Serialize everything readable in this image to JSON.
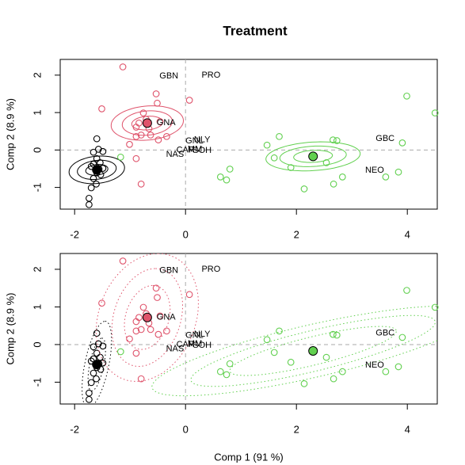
{
  "chart_data": [
    {
      "type": "scatter",
      "title": "Treatment",
      "ylabel": "Comp 2 (8.9 %)",
      "xlim": [
        -2.26,
        4.54
      ],
      "ylim": [
        -1.58,
        2.42
      ],
      "xticks": [
        -2,
        0,
        2,
        4
      ],
      "yticks": [
        -1,
        0,
        1,
        2
      ],
      "ellipse_style": "solid",
      "series": [
        {
          "color": "#000000",
          "x": [
            -1.6,
            -1.57,
            -1.66,
            -1.49,
            -1.6,
            -1.66,
            -1.54,
            -1.7,
            -1.56,
            -1.6,
            -1.66,
            -1.61,
            -1.7,
            -1.74,
            -1.74,
            -1.49,
            -1.53
          ],
          "y": [
            0.3,
            0.02,
            -0.06,
            -0.04,
            -0.23,
            -0.38,
            -0.34,
            -0.44,
            -0.51,
            -0.61,
            -0.76,
            -0.91,
            -1.01,
            -1.29,
            -1.46,
            -0.49,
            -0.66
          ],
          "centroid": {
            "x": -1.6,
            "y": -0.53
          },
          "ellipses": [
            {
              "a": [
                0.5,
                0.08
              ],
              "b": [
                -0.03,
                0.36
              ]
            },
            {
              "a": [
                0.35,
                0.06
              ],
              "b": [
                -0.02,
                0.25
              ]
            },
            {
              "a": [
                0.2,
                0.035
              ],
              "b": [
                -0.01,
                0.14
              ]
            }
          ]
        },
        {
          "color": "#DF536B",
          "x": [
            -1.13,
            -1.51,
            -0.53,
            -0.51,
            0.07,
            -0.76,
            -0.71,
            -0.46,
            -0.89,
            -0.84,
            -0.66,
            -0.63,
            -1.01,
            -0.89,
            -0.8,
            -0.34,
            -0.49,
            -0.89,
            -0.8
          ],
          "y": [
            2.22,
            1.1,
            1.5,
            1.25,
            1.33,
            0.99,
            0.82,
            0.76,
            0.61,
            0.72,
            0.57,
            0.4,
            0.15,
            0.36,
            0.4,
            0.36,
            0.27,
            -0.23,
            -0.91
          ],
          "centroid": {
            "x": -0.69,
            "y": 0.72
          },
          "ellipses": [
            {
              "a": [
                0.65,
                0.1
              ],
              "b": [
                -0.05,
                0.45
              ]
            },
            {
              "a": [
                0.45,
                0.07
              ],
              "b": [
                -0.035,
                0.32
              ]
            },
            {
              "a": [
                0.28,
                0.04
              ],
              "b": [
                -0.02,
                0.18
              ]
            }
          ]
        },
        {
          "color": "#61D04F",
          "x": [
            -1.17,
            1.47,
            1.69,
            1.6,
            1.9,
            0.63,
            0.8,
            0.74,
            2.14,
            2.54,
            2.67,
            2.83,
            2.73,
            2.66,
            3.99,
            4.5,
            3.91,
            3.84,
            3.61
          ],
          "y": [
            -0.19,
            0.13,
            0.36,
            -0.21,
            -0.47,
            -0.72,
            -0.51,
            -0.8,
            -1.04,
            -0.34,
            -0.91,
            -0.72,
            0.25,
            0.27,
            1.44,
            0.99,
            0.19,
            -0.59,
            -0.72
          ],
          "centroid": {
            "x": 2.3,
            "y": -0.17
          },
          "ellipses": [
            {
              "a": [
                0.85,
                0.08
              ],
              "b": [
                -0.02,
                0.38
              ]
            },
            {
              "a": [
                0.6,
                0.055
              ],
              "b": [
                -0.015,
                0.27
              ]
            },
            {
              "a": [
                0.35,
                0.03
              ],
              "b": [
                -0.01,
                0.16
              ]
            }
          ]
        }
      ],
      "labels": [
        {
          "text": "GBN",
          "x": -0.3,
          "y": 1.97
        },
        {
          "text": "PRO",
          "x": 0.46,
          "y": 2.0
        },
        {
          "text": "GNA",
          "x": -0.35,
          "y": 0.72
        },
        {
          "text": "GNL",
          "x": 0.16,
          "y": 0.24
        },
        {
          "text": "NLY",
          "x": 0.3,
          "y": 0.27
        },
        {
          "text": "CAR",
          "x": 0.0,
          "y": 0.0
        },
        {
          "text": "MM",
          "x": 0.17,
          "y": 0.02
        },
        {
          "text": "SOH",
          "x": 0.3,
          "y": -0.02
        },
        {
          "text": "NAS",
          "x": -0.19,
          "y": -0.12
        },
        {
          "text": "GBC",
          "x": 3.6,
          "y": 0.3
        },
        {
          "text": "NEO",
          "x": 3.41,
          "y": -0.55
        }
      ]
    },
    {
      "type": "scatter",
      "ylabel": "Comp 2 (8.9 %)",
      "xlabel": "Comp 1 (91 %)",
      "xlim": [
        -2.26,
        4.54
      ],
      "ylim": [
        -1.58,
        2.42
      ],
      "xticks": [
        -2,
        0,
        2,
        4
      ],
      "yticks": [
        -1,
        0,
        1,
        2
      ],
      "ellipse_style": "dotted",
      "series": [
        {
          "color": "#000000",
          "x": [
            -1.6,
            -1.57,
            -1.66,
            -1.49,
            -1.6,
            -1.66,
            -1.54,
            -1.7,
            -1.56,
            -1.6,
            -1.66,
            -1.61,
            -1.7,
            -1.74,
            -1.74,
            -1.49,
            -1.53
          ],
          "y": [
            0.3,
            0.02,
            -0.06,
            -0.04,
            -0.23,
            -0.38,
            -0.34,
            -0.44,
            -0.51,
            -0.61,
            -0.76,
            -0.91,
            -1.01,
            -1.29,
            -1.46,
            -0.49,
            -0.66
          ],
          "centroid": {
            "x": -1.6,
            "y": -0.53
          },
          "ellipses": [
            {
              "a": [
                0.09,
                0.7
              ],
              "b": [
                0.13,
                0
              ]
            },
            {
              "a": [
                0.15,
                1.15
              ],
              "b": [
                0.22,
                0
              ]
            }
          ]
        },
        {
          "color": "#DF536B",
          "x": [
            -1.13,
            -1.51,
            -0.53,
            -0.51,
            0.07,
            -0.76,
            -0.71,
            -0.46,
            -0.89,
            -0.84,
            -0.66,
            -0.63,
            -1.01,
            -0.89,
            -0.8,
            -0.34,
            -0.49,
            -0.89,
            -0.8
          ],
          "y": [
            2.22,
            1.1,
            1.5,
            1.25,
            1.33,
            0.99,
            0.82,
            0.76,
            0.61,
            0.72,
            0.57,
            0.4,
            0.15,
            0.36,
            0.4,
            0.36,
            0.27,
            -0.23,
            -0.91
          ],
          "centroid": {
            "x": -0.69,
            "y": 0.72
          },
          "ellipses": [
            {
              "a": [
                0.1,
                0.85
              ],
              "b": [
                0.4,
                0
              ]
            },
            {
              "a": [
                0.15,
                1.3
              ],
              "b": [
                0.62,
                0
              ]
            },
            {
              "a": [
                0.2,
                1.7
              ],
              "b": [
                0.9,
                0
              ]
            }
          ]
        },
        {
          "color": "#61D04F",
          "x": [
            -1.17,
            1.47,
            1.69,
            1.6,
            1.9,
            0.63,
            0.8,
            0.74,
            2.14,
            2.54,
            2.67,
            2.83,
            2.73,
            2.66,
            3.99,
            4.5,
            3.91,
            3.84,
            3.61
          ],
          "y": [
            -0.19,
            0.13,
            0.36,
            -0.21,
            -0.47,
            -0.72,
            -0.51,
            -0.8,
            -1.04,
            -0.34,
            -0.91,
            -0.72,
            0.25,
            0.27,
            1.44,
            0.99,
            0.19,
            -0.59,
            -0.72
          ],
          "centroid": {
            "x": 2.3,
            "y": -0.17
          },
          "ellipses": [
            {
              "a": [
                1.5,
                0.55
              ],
              "b": [
                -0.1,
                0.35
              ]
            },
            {
              "a": [
                2.2,
                0.8
              ],
              "b": [
                -0.15,
                0.5
              ]
            },
            {
              "a": [
                2.9,
                1.0
              ],
              "b": [
                -0.2,
                0.65
              ]
            }
          ]
        }
      ],
      "labels": [
        {
          "text": "GBN",
          "x": -0.3,
          "y": 1.97
        },
        {
          "text": "PRO",
          "x": 0.46,
          "y": 2.0
        },
        {
          "text": "GNA",
          "x": -0.35,
          "y": 0.72
        },
        {
          "text": "GNL",
          "x": 0.16,
          "y": 0.24
        },
        {
          "text": "NLY",
          "x": 0.3,
          "y": 0.27
        },
        {
          "text": "CAR",
          "x": 0.0,
          "y": 0.0
        },
        {
          "text": "MM",
          "x": 0.17,
          "y": 0.02
        },
        {
          "text": "SOH",
          "x": 0.3,
          "y": -0.02
        },
        {
          "text": "NAS",
          "x": -0.19,
          "y": -0.12
        },
        {
          "text": "GBC",
          "x": 3.6,
          "y": 0.3
        },
        {
          "text": "NEO",
          "x": 3.41,
          "y": -0.55
        }
      ]
    }
  ]
}
